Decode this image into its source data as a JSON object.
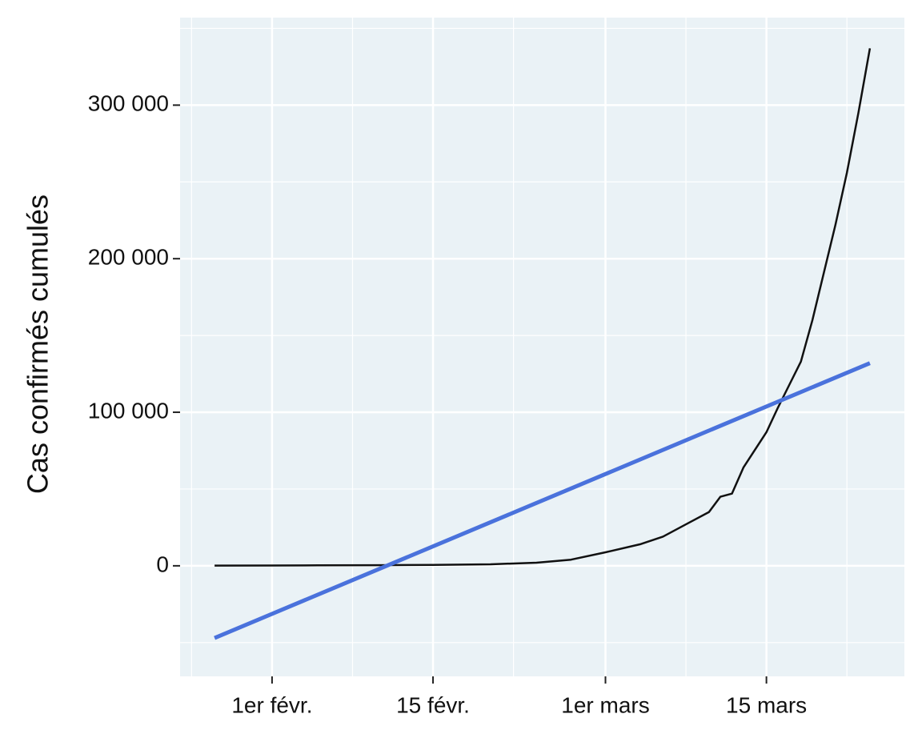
{
  "chart_data": {
    "type": "line",
    "y_label": "Cas confirmés cumulés",
    "xlim": [
      "01-24",
      "03-27"
    ],
    "xticks": [
      {
        "value": "02-01",
        "label": "1er févr."
      },
      {
        "value": "02-15",
        "label": "15 févr."
      },
      {
        "value": "03-01",
        "label": "1er mars"
      },
      {
        "value": "03-15",
        "label": "15 mars"
      }
    ],
    "ylim": [
      -72000,
      357000
    ],
    "yticks": [
      0,
      {
        "value": 100000,
        "label": "100 000"
      },
      {
        "value": 200000,
        "label": "200 000"
      },
      {
        "value": 300000,
        "label": "300 000"
      }
    ],
    "grid": true,
    "series": [
      {
        "color": "#111111",
        "x": [
          "01-27",
          "02-01",
          "02-05",
          "02-10",
          "02-15",
          "02-20",
          "02-24",
          "02-27",
          "03-01",
          "03-04",
          "03-06",
          "03-08",
          "03-10",
          "03-11",
          "03-12",
          "03-13",
          "03-15",
          "03-16",
          "03-17",
          "03-18",
          "03-19",
          "03-20",
          "03-21",
          "03-22",
          "03-23",
          "03-24"
        ],
        "values": [
          100,
          200,
          300,
          400,
          600,
          1000,
          2000,
          4000,
          8800,
          14000,
          19000,
          27000,
          35000,
          45000,
          47000,
          64000,
          87000,
          103000,
          118000,
          133000,
          160000,
          191000,
          222000,
          256000,
          295000,
          337000
        ]
      },
      {
        "color": "#4a72dc",
        "x": [
          "01-27",
          "03-24"
        ],
        "values": [
          -47000,
          132000
        ]
      }
    ]
  }
}
